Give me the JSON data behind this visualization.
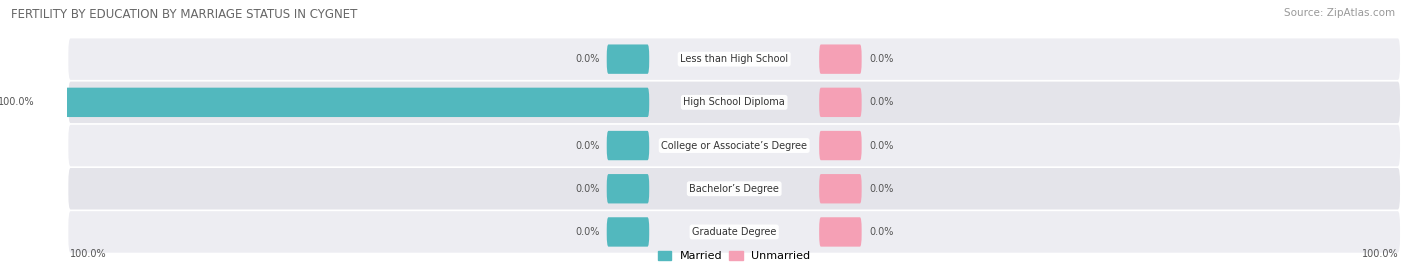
{
  "title": "FERTILITY BY EDUCATION BY MARRIAGE STATUS IN CYGNET",
  "source": "Source: ZipAtlas.com",
  "categories": [
    "Less than High School",
    "High School Diploma",
    "College or Associate’s Degree",
    "Bachelor’s Degree",
    "Graduate Degree"
  ],
  "married_values": [
    0.0,
    100.0,
    0.0,
    0.0,
    0.0
  ],
  "unmarried_values": [
    0.0,
    0.0,
    0.0,
    0.0,
    0.0
  ],
  "married_color": "#52b8be",
  "unmarried_color": "#f5a0b5",
  "max_value": 100.0,
  "placeholder_pct": 7.0,
  "title_fontsize": 8.5,
  "source_fontsize": 7.5,
  "label_fontsize": 7.0,
  "legend_fontsize": 8.0,
  "value_fontsize": 7.0
}
